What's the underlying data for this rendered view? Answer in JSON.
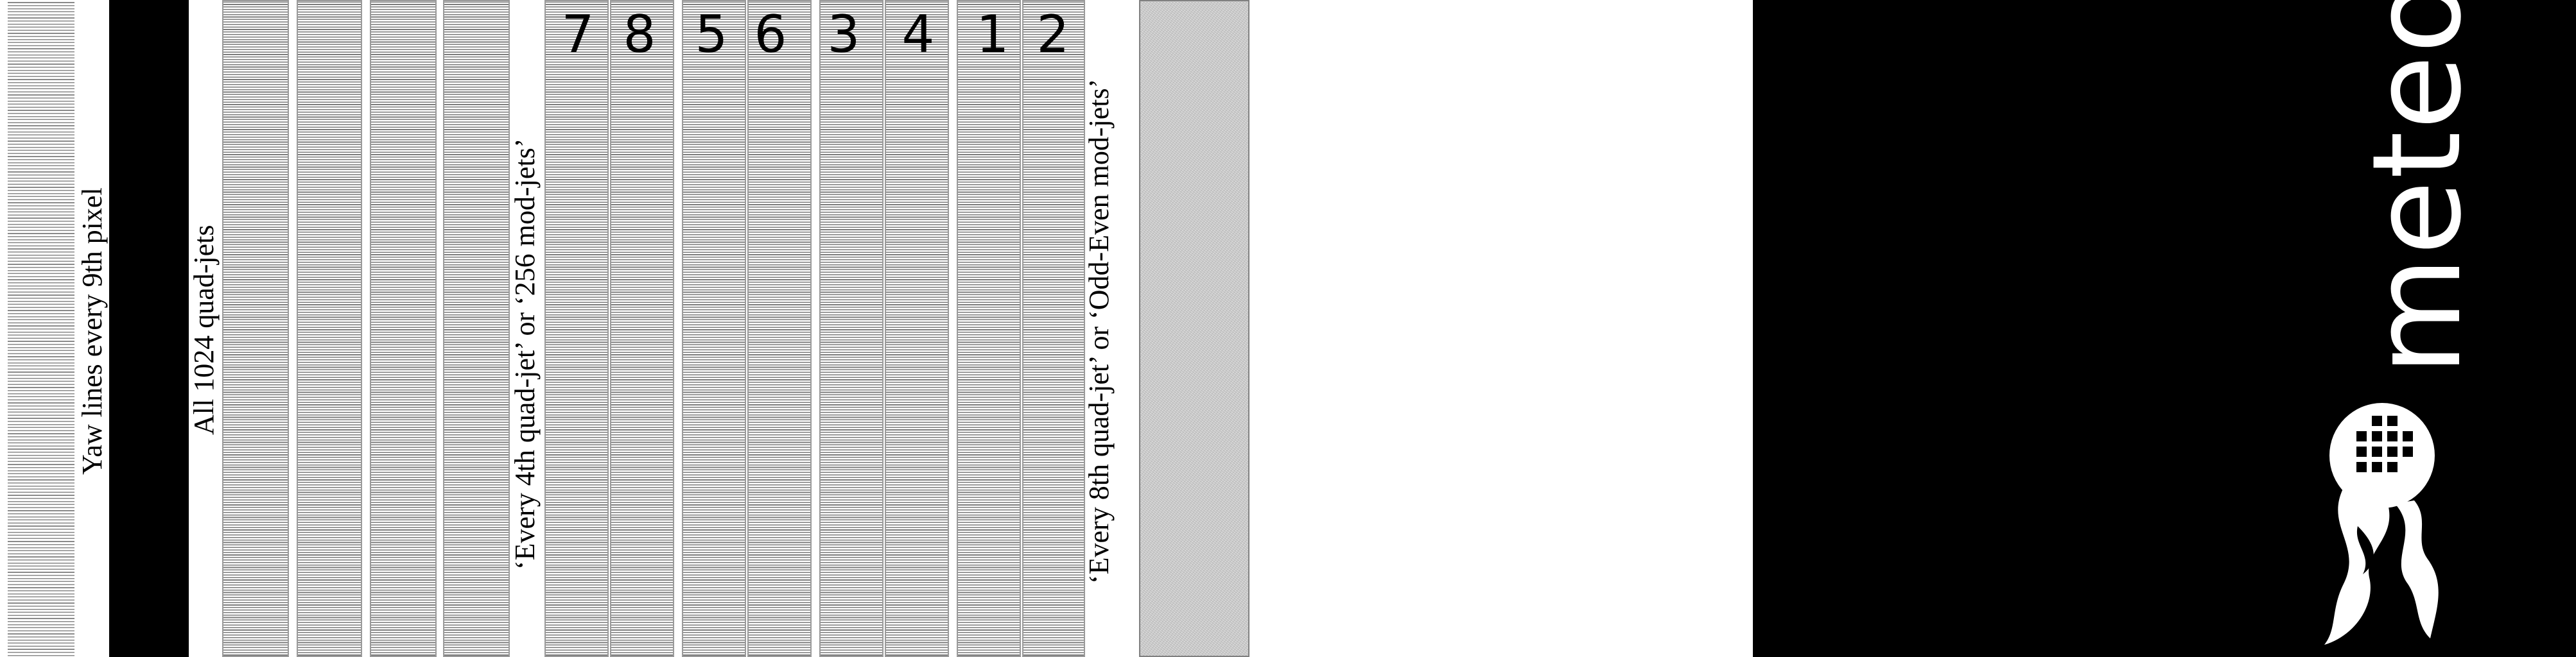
{
  "labels": {
    "yaw": "Yaw lines every 9th pixel",
    "all_quad": "All 1024 quad-jets",
    "every_4th": "‘Every 4th quad-jet’ or ‘256 mod-jets’",
    "every_8th": "‘Every 8th quad-jet’ or ‘Odd-Even mod-jets’"
  },
  "jet_numbers": [
    "7",
    "8",
    "5",
    "6",
    "3",
    "4",
    "1",
    "2"
  ],
  "logo": {
    "name": "meteor",
    "background": "#000000",
    "foreground": "#ffffff"
  }
}
